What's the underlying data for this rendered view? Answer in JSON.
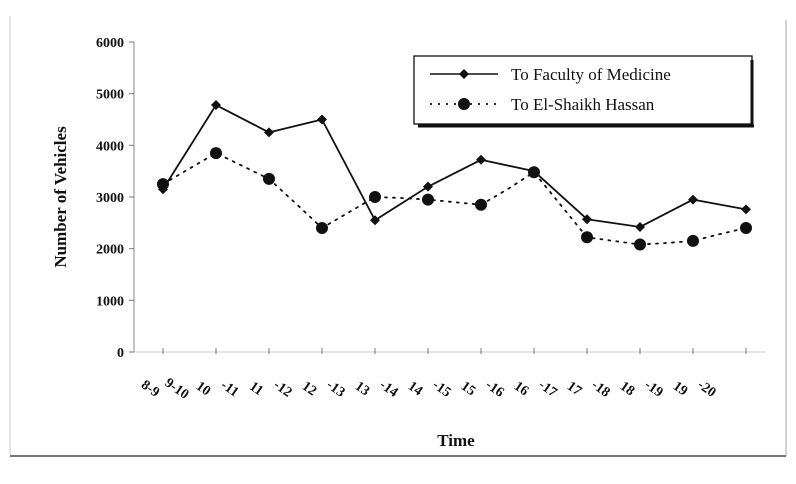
{
  "chart_data": {
    "type": "line",
    "xlabel": "Time",
    "ylabel": "Number of Vehicles",
    "ylim": [
      0,
      6000
    ],
    "yticks": [
      "0",
      "1000",
      "2000",
      "3000",
      "4000",
      "5000",
      "6000"
    ],
    "categories": [
      "8-9",
      "9-10",
      "10-11",
      "11-12",
      "12-13",
      "13-14",
      "14-15",
      "15-16",
      "16-17",
      "17-18",
      "18-19",
      "19-20"
    ],
    "tick_labels": [
      "8-9",
      "9-10",
      "10",
      "-11",
      "11",
      "-12",
      "12",
      "-13",
      "13",
      "-14",
      "14",
      "-15",
      "15",
      "-16",
      "16",
      "-17",
      "17",
      "-18",
      "18",
      "-19",
      "19",
      "-20"
    ],
    "x_positions": [
      0,
      1,
      2,
      3,
      4,
      5,
      6,
      7,
      8,
      9,
      10,
      11
    ],
    "legend_position": "top-right",
    "grid": false,
    "series": [
      {
        "name": "To Faculty of Medicine",
        "style": "solid-diamond",
        "color": "#111111",
        "x": [
          0,
          1,
          2,
          3,
          4,
          5,
          6,
          7,
          8,
          9,
          10,
          11
        ],
        "values": [
          3150,
          4780,
          4250,
          4500,
          2550,
          3200,
          3720,
          3500,
          2570,
          2420,
          2950,
          2760
        ]
      },
      {
        "name": "To El-Shaikh Hassan",
        "style": "dotted-circle",
        "color": "#111111",
        "x": [
          0,
          0.5,
          1,
          1.5,
          2,
          2.5,
          3,
          3.5,
          4,
          4.5,
          5,
          5.5,
          6,
          6.5,
          7,
          7.5,
          8,
          8.5,
          9,
          9.5,
          10,
          10.5,
          11
        ],
        "values": [
          3250,
          3550,
          3850,
          3600,
          3350,
          2880,
          2400,
          2700,
          3000,
          2980,
          2950,
          2900,
          2850,
          3150,
          3480,
          2850,
          2220,
          2150,
          2080,
          2110,
          2150,
          2280,
          2400
        ],
        "markers_x": [
          0,
          1,
          2,
          3,
          4,
          5,
          6,
          7,
          8,
          9,
          10,
          11
        ],
        "markers_values": [
          3250,
          3850,
          3350,
          2400,
          3000,
          2950,
          2850,
          3480,
          2220,
          2080,
          2150,
          2400
        ]
      }
    ]
  }
}
